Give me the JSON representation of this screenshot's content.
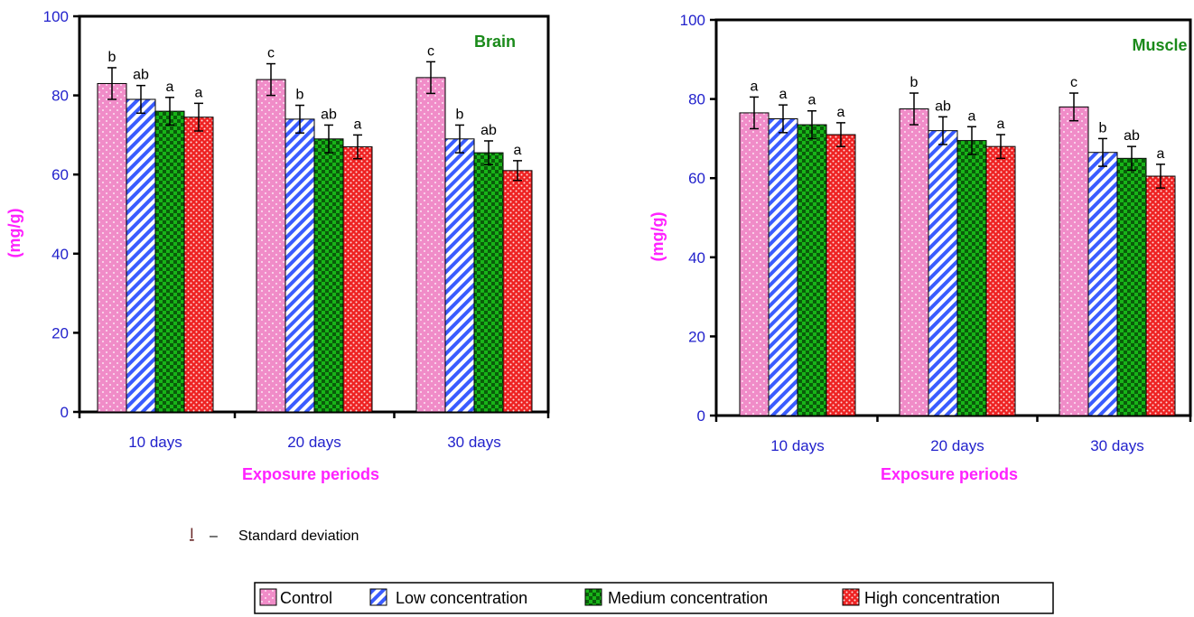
{
  "chart_data": [
    {
      "type": "bar",
      "title": "Brain",
      "xlabel": "Exposure periods",
      "ylabel": "(mg/g)",
      "ylim": [
        0,
        100
      ],
      "yticks": [
        0,
        20,
        40,
        60,
        80,
        100
      ],
      "categories": [
        "10 days",
        "20 days",
        "30 days"
      ],
      "grid": false,
      "series": [
        {
          "name": "Control",
          "values": [
            83,
            84,
            84.5
          ],
          "sd": [
            4,
            4,
            4
          ],
          "labels": [
            "b",
            "c",
            "c"
          ]
        },
        {
          "name": "Low concentration",
          "values": [
            79,
            74,
            69
          ],
          "sd": [
            3.5,
            3.5,
            3.5
          ],
          "labels": [
            "ab",
            "b",
            "b"
          ]
        },
        {
          "name": "Medium concentration",
          "values": [
            76,
            69,
            65.5
          ],
          "sd": [
            3.5,
            3.5,
            3
          ],
          "labels": [
            "a",
            "ab",
            "ab"
          ]
        },
        {
          "name": "High concentration",
          "values": [
            74.5,
            67,
            61
          ],
          "sd": [
            3.5,
            3,
            2.5
          ],
          "labels": [
            "a",
            "a",
            "a"
          ]
        }
      ]
    },
    {
      "type": "bar",
      "title": "Muscle",
      "xlabel": "Exposure periods",
      "ylabel": "(mg/g)",
      "ylim": [
        0,
        100
      ],
      "yticks": [
        0,
        20,
        40,
        60,
        80,
        100
      ],
      "categories": [
        "10 days",
        "20 days",
        "30 days"
      ],
      "grid": false,
      "series": [
        {
          "name": "Control",
          "values": [
            76.5,
            77.5,
            78
          ],
          "sd": [
            4,
            4,
            3.5
          ],
          "labels": [
            "a",
            "b",
            "c"
          ]
        },
        {
          "name": "Low concentration",
          "values": [
            75,
            72,
            66.5
          ],
          "sd": [
            3.5,
            3.5,
            3.5
          ],
          "labels": [
            "a",
            "ab",
            "b"
          ]
        },
        {
          "name": "Medium concentration",
          "values": [
            73.5,
            69.5,
            65
          ],
          "sd": [
            3.5,
            3.5,
            3
          ],
          "labels": [
            "a",
            "a",
            "ab"
          ]
        },
        {
          "name": "High concentration",
          "values": [
            71,
            68,
            60.5
          ],
          "sd": [
            3,
            3,
            3
          ],
          "labels": [
            "a",
            "a",
            "a"
          ]
        }
      ]
    }
  ],
  "legend": {
    "placement": "bottom-center",
    "items": [
      "Control",
      "Low concentration",
      "Medium concentration",
      "High concentration"
    ]
  },
  "sd_note": {
    "symbol": "I",
    "dash": "–",
    "text": "Standard deviation"
  },
  "colors": {
    "control": "#f08cc8",
    "low": "#3a5cff",
    "medium": "#18b418",
    "high": "#ee2222",
    "tick_text": "#2222cc",
    "axis_title": "#ff22ff",
    "panel_title": "#1a8a1a"
  }
}
